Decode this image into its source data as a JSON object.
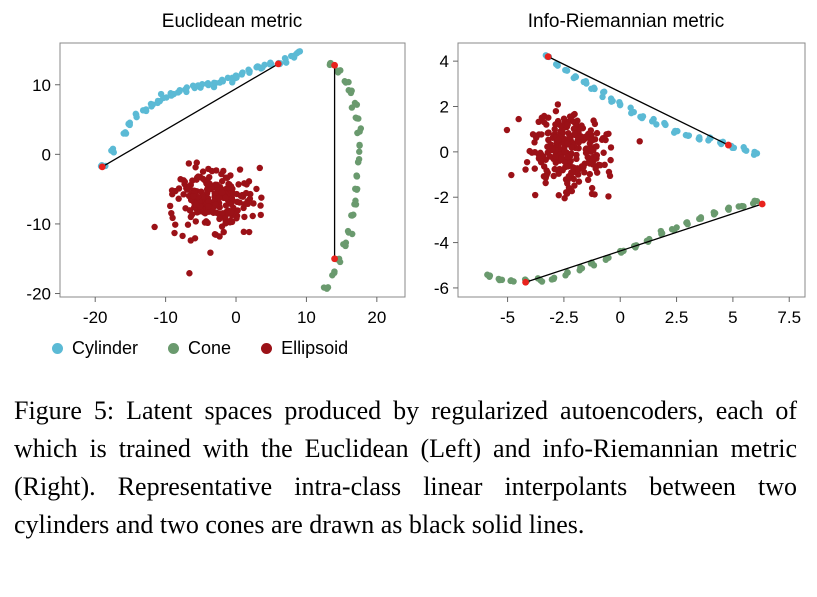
{
  "chart_data": [
    {
      "type": "scatter",
      "title": "Euclidean metric",
      "xlim": [
        -25,
        24
      ],
      "ylim": [
        -20.5,
        16
      ],
      "xticks": [
        -20,
        -10,
        0,
        10,
        20
      ],
      "yticks": [
        -20,
        -10,
        0,
        10
      ],
      "grid": false,
      "series": [
        {
          "name": "Cylinder",
          "color": "#5bbad5",
          "points": [
            [
              -19,
              -1.8
            ],
            [
              -17.5,
              0.5
            ],
            [
              -16,
              3
            ],
            [
              -15,
              4.6
            ],
            [
              -14,
              5.5
            ],
            [
              -13,
              6.4
            ],
            [
              -12,
              7.1
            ],
            [
              -11,
              7.7
            ],
            [
              -10,
              8.2
            ],
            [
              -9,
              8.6
            ],
            [
              -8,
              9
            ],
            [
              -7,
              9.3
            ],
            [
              -6,
              9.6
            ],
            [
              -5,
              9.8
            ],
            [
              -4,
              10
            ],
            [
              -3,
              10.2
            ],
            [
              -2,
              10.4
            ],
            [
              -1,
              10.8
            ],
            [
              0,
              11.2
            ],
            [
              1,
              11.6
            ],
            [
              2,
              12
            ],
            [
              3,
              12.4
            ],
            [
              4,
              12.8
            ],
            [
              5,
              13
            ],
            [
              6,
              13.2
            ],
            [
              7,
              13.6
            ],
            [
              8,
              14.1
            ],
            [
              9,
              14.5
            ]
          ]
        },
        {
          "name": "Cone",
          "color": "#6a9a6e",
          "points": [
            [
              13.5,
              13
            ],
            [
              14.5,
              12
            ],
            [
              15.5,
              10.5
            ],
            [
              16.2,
              9
            ],
            [
              16.8,
              7
            ],
            [
              17.2,
              5
            ],
            [
              17.4,
              3
            ],
            [
              17.5,
              1
            ],
            [
              17.4,
              -1
            ],
            [
              17.2,
              -3
            ],
            [
              17,
              -5
            ],
            [
              16.8,
              -7
            ],
            [
              16.4,
              -9
            ],
            [
              16,
              -11
            ],
            [
              15.3,
              -13
            ],
            [
              14.5,
              -15
            ],
            [
              13.8,
              -17
            ],
            [
              13,
              -19
            ]
          ]
        },
        {
          "name": "Ellipsoid",
          "color": "#9b1117",
          "center": [
            -3,
            -6.5
          ],
          "spread": [
            6.5,
            5
          ],
          "n": 220
        }
      ],
      "interpolants": [
        {
          "from": [
            -19,
            -1.8
          ],
          "to": [
            6,
            13
          ]
        },
        {
          "from": [
            14,
            12.8
          ],
          "to": [
            14,
            -15
          ]
        }
      ]
    },
    {
      "type": "scatter",
      "title": "Info-Riemannian metric",
      "xlim": [
        -7.2,
        8.2
      ],
      "ylim": [
        -6.4,
        4.8
      ],
      "xticks": [
        -5,
        -2.5,
        0,
        2.5,
        5,
        7.5
      ],
      "yticks": [
        -6,
        -4,
        -2,
        0,
        2,
        4
      ],
      "grid": false,
      "series": [
        {
          "name": "Cylinder",
          "color": "#5bbad5",
          "points": [
            [
              -3.2,
              4.2
            ],
            [
              -2.8,
              3.9
            ],
            [
              -2.4,
              3.6
            ],
            [
              -2,
              3.3
            ],
            [
              -1.6,
              3.05
            ],
            [
              -1.2,
              2.8
            ],
            [
              -0.8,
              2.55
            ],
            [
              -0.4,
              2.3
            ],
            [
              0,
              2.05
            ],
            [
              0.5,
              1.8
            ],
            [
              1,
              1.55
            ],
            [
              1.5,
              1.35
            ],
            [
              2,
              1.15
            ],
            [
              2.5,
              0.95
            ],
            [
              3,
              0.8
            ],
            [
              3.5,
              0.65
            ],
            [
              4,
              0.5
            ],
            [
              4.5,
              0.38
            ],
            [
              5,
              0.25
            ],
            [
              5.5,
              0.1
            ],
            [
              6,
              -0.05
            ]
          ]
        },
        {
          "name": "Cone",
          "color": "#6a9a6e",
          "points": [
            [
              -5.8,
              -5.5
            ],
            [
              -5.3,
              -5.6
            ],
            [
              -4.8,
              -5.7
            ],
            [
              -4.2,
              -5.75
            ],
            [
              -3.6,
              -5.7
            ],
            [
              -3,
              -5.55
            ],
            [
              -2.4,
              -5.35
            ],
            [
              -1.8,
              -5.15
            ],
            [
              -1.2,
              -4.9
            ],
            [
              -0.6,
              -4.65
            ],
            [
              0,
              -4.4
            ],
            [
              0.6,
              -4.15
            ],
            [
              1.2,
              -3.9
            ],
            [
              1.8,
              -3.65
            ],
            [
              2.4,
              -3.4
            ],
            [
              3,
              -3.15
            ],
            [
              3.6,
              -2.9
            ],
            [
              4.2,
              -2.7
            ],
            [
              4.8,
              -2.5
            ],
            [
              5.4,
              -2.35
            ],
            [
              6,
              -2.2
            ]
          ]
        },
        {
          "name": "Ellipsoid",
          "color": "#9b1117",
          "center": [
            -2.2,
            0
          ],
          "spread": [
            2,
            1.8
          ],
          "n": 240
        }
      ],
      "interpolants": [
        {
          "from": [
            -3.2,
            4.2
          ],
          "to": [
            4.8,
            0.3
          ]
        },
        {
          "from": [
            -4.2,
            -5.75
          ],
          "to": [
            6.3,
            -2.3
          ]
        }
      ]
    }
  ],
  "legend": {
    "items": [
      {
        "label": "Cylinder",
        "color": "#5bbad5"
      },
      {
        "label": "Cone",
        "color": "#6a9a6e"
      },
      {
        "label": "Ellipsoid",
        "color": "#9b1117"
      }
    ]
  },
  "caption": {
    "text": "Figure 5: Latent spaces produced by regularized autoencoders, each of which is trained with the Euclidean (Left) and info-Riemannian metric (Right). Representative intra-class linear interpolants between two cylinders and two cones are drawn as black solid lines."
  }
}
